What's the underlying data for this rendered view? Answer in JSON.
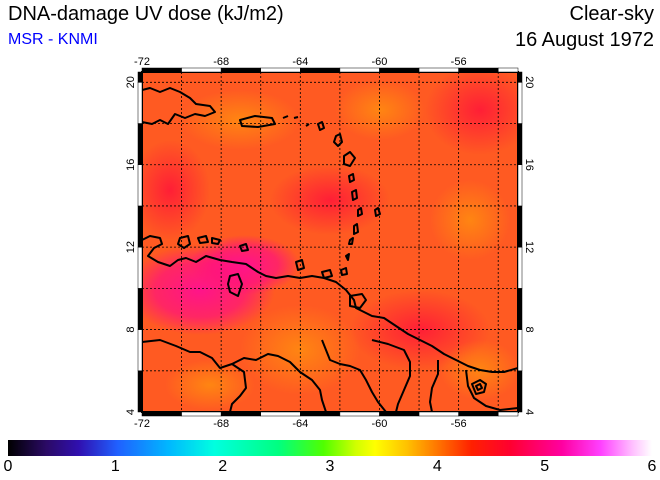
{
  "header": {
    "title": "DNA-damage UV dose (kJ/m2)",
    "subtitle": "MSR - KNMI",
    "condition": "Clear-sky",
    "date": "16 August 1972"
  },
  "map": {
    "lon_range": [
      -72,
      -53
    ],
    "lat_range": [
      4,
      20.5
    ],
    "lon_ticks": [
      "-72",
      "-68",
      "-64",
      "-60",
      "-56"
    ],
    "lat_ticks": [
      "4",
      "8",
      "12",
      "16",
      "20"
    ],
    "background_color": "#ff5a22"
  },
  "colorbar": {
    "min": 0,
    "max": 6,
    "ticks": [
      "0",
      "1",
      "2",
      "3",
      "4",
      "5",
      "6"
    ]
  }
}
